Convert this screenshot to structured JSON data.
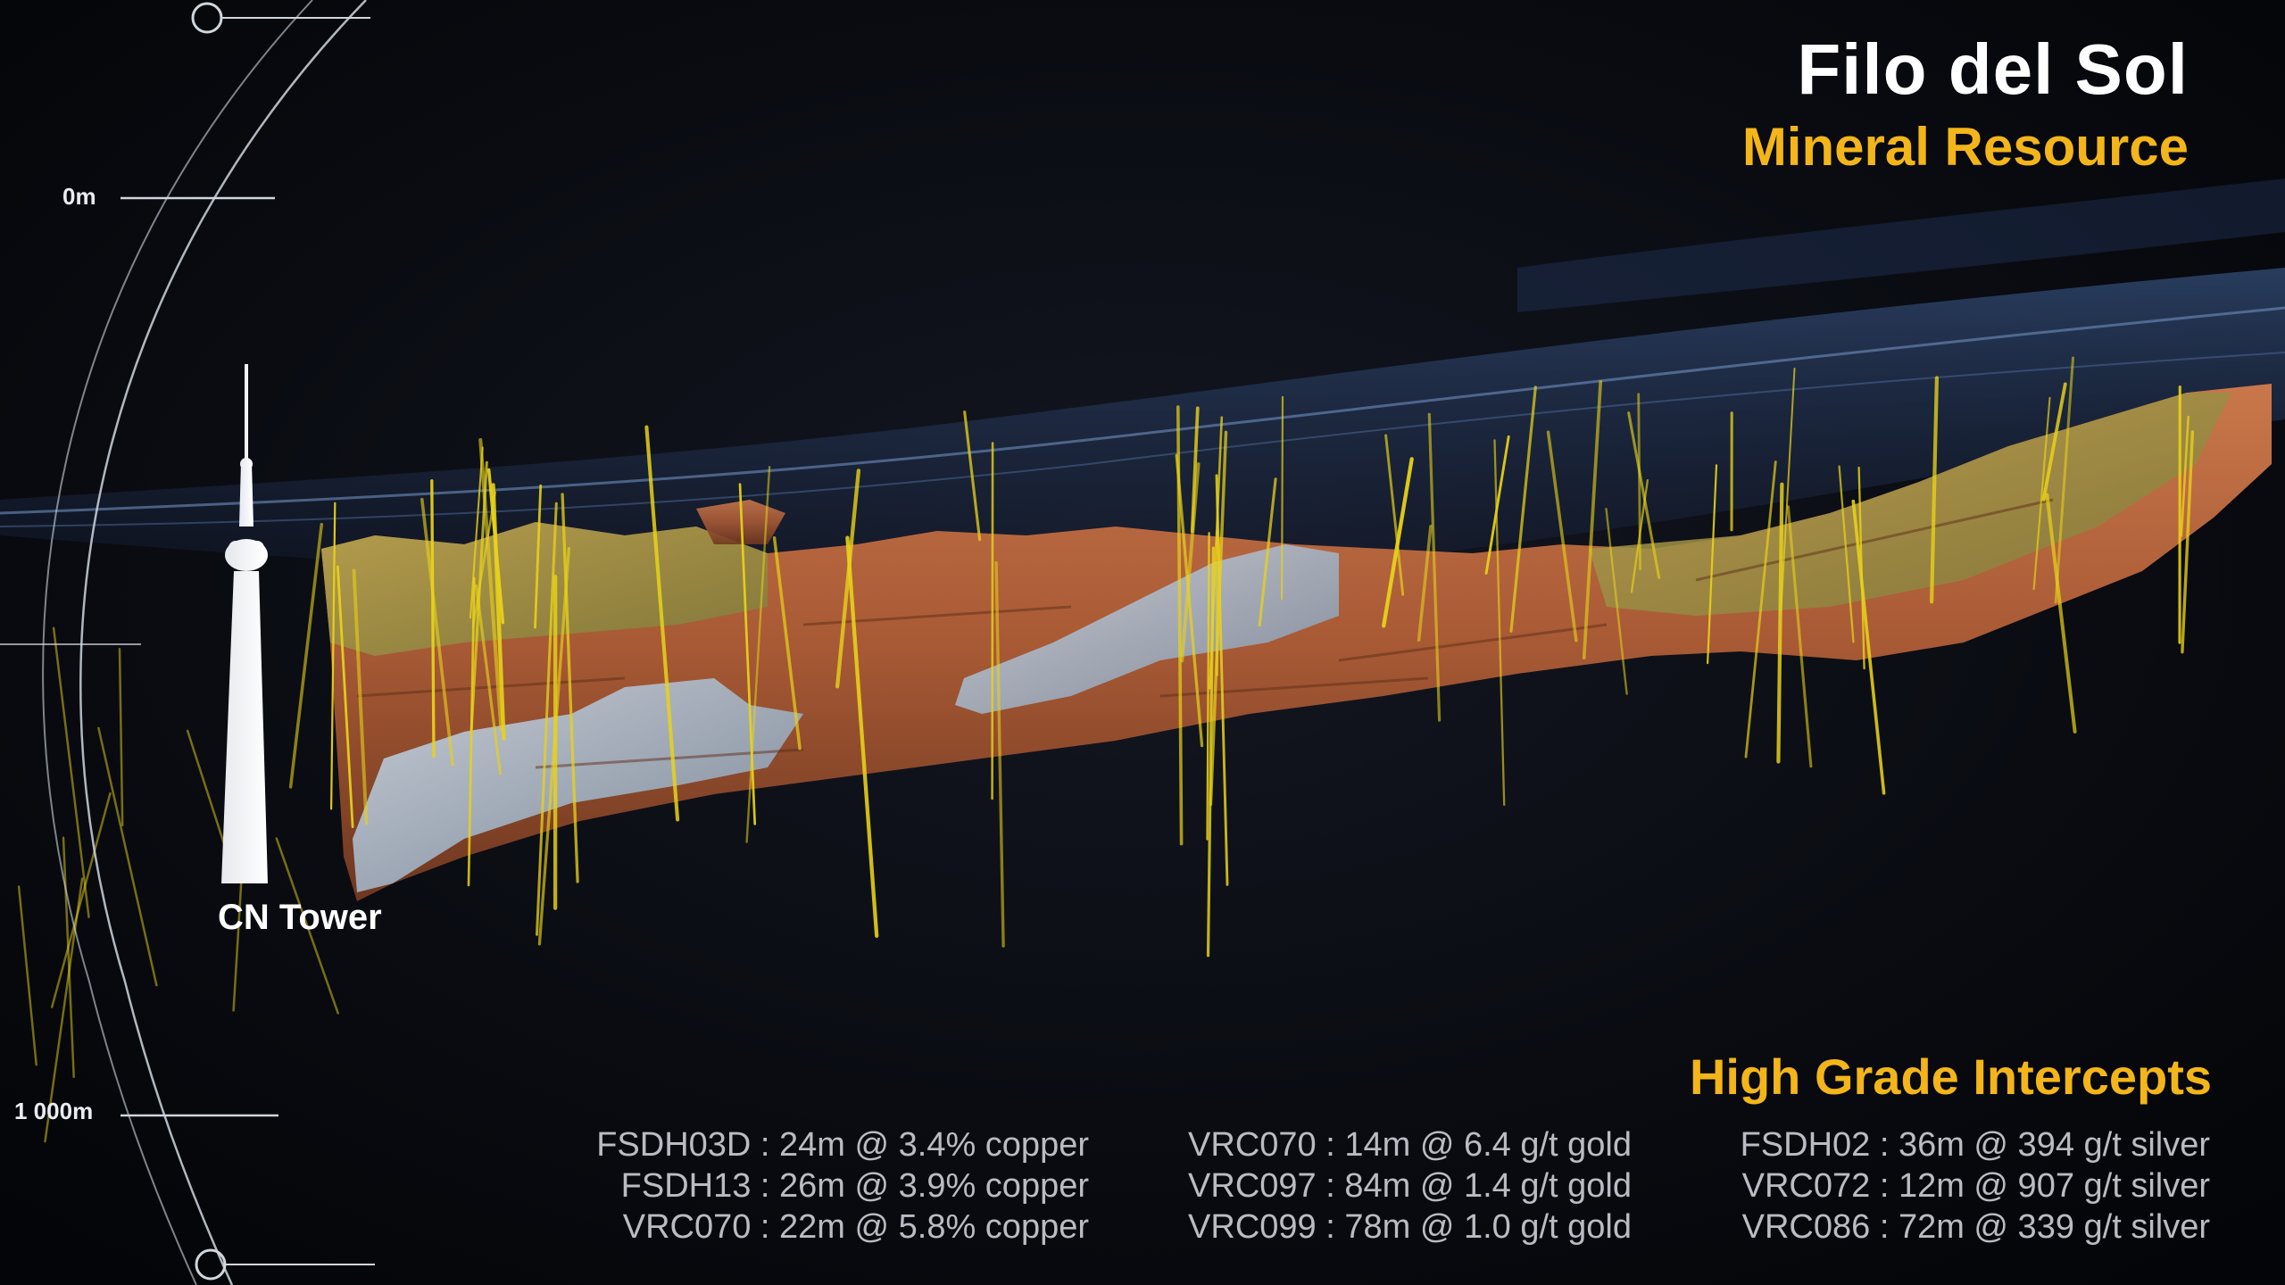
{
  "title": "Filo del Sol",
  "subtitle": "Mineral Resource",
  "depth_scale": {
    "top_label": "0m",
    "bottom_label": "1 000m"
  },
  "reference": {
    "label": "CN Tower"
  },
  "intercepts": {
    "heading": "High Grade Intercepts",
    "copper": [
      "FSDH03D : 24m @ 3.4% copper",
      "FSDH13 : 26m @ 3.9% copper",
      "VRC070 : 22m @ 5.8% copper"
    ],
    "gold": [
      "VRC070 : 14m @ 6.4 g/t gold",
      "VRC097 : 84m @ 1.4 g/t gold",
      "VRC099 : 78m @ 1.0 g/t gold"
    ],
    "silver": [
      "FSDH02 : 36m @ 394 g/t silver",
      "VRC072 : 12m @ 907 g/t silver",
      "VRC086 : 72m @ 339 g/t silver"
    ]
  },
  "colors": {
    "accent_gold": "#f3b519",
    "title_white": "#ffffff",
    "body_text": "#b9bcc2",
    "copper_body": "#b8663a",
    "silver_body": "#9fb4c8",
    "gold_body": "#a89a48",
    "drill_hole": "#e8d21a",
    "terrain_blue": "#2c4470",
    "background": "#07080c"
  }
}
